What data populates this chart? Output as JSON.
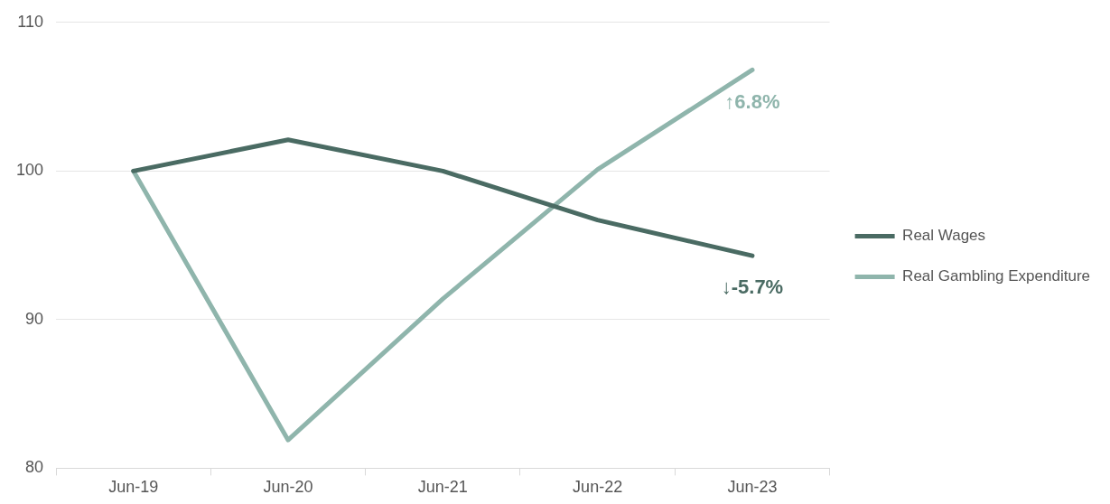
{
  "chart_data": {
    "type": "line",
    "categories": [
      "Jun-19",
      "Jun-20",
      "Jun-21",
      "Jun-22",
      "Jun-23"
    ],
    "series": [
      {
        "name": "Real Wages",
        "color": "#4a6b63",
        "values": [
          100,
          102.1,
          100,
          96.7,
          94.3
        ]
      },
      {
        "name": "Real Gambling Expenditure",
        "color": "#8fb5ac",
        "values": [
          100,
          81.9,
          91.4,
          100.1,
          106.8
        ]
      }
    ],
    "ylim": [
      80,
      110
    ],
    "yticks": [
      80,
      90,
      100,
      110
    ],
    "grid": "y",
    "legend": "right",
    "marker": "none",
    "line_style": "solid",
    "annotations": [
      {
        "text": "↑6.8%",
        "x": "Jun-23",
        "y": 106.8
      },
      {
        "text": "↓-5.7%",
        "x": "Jun-23",
        "y": 94.3
      }
    ]
  }
}
